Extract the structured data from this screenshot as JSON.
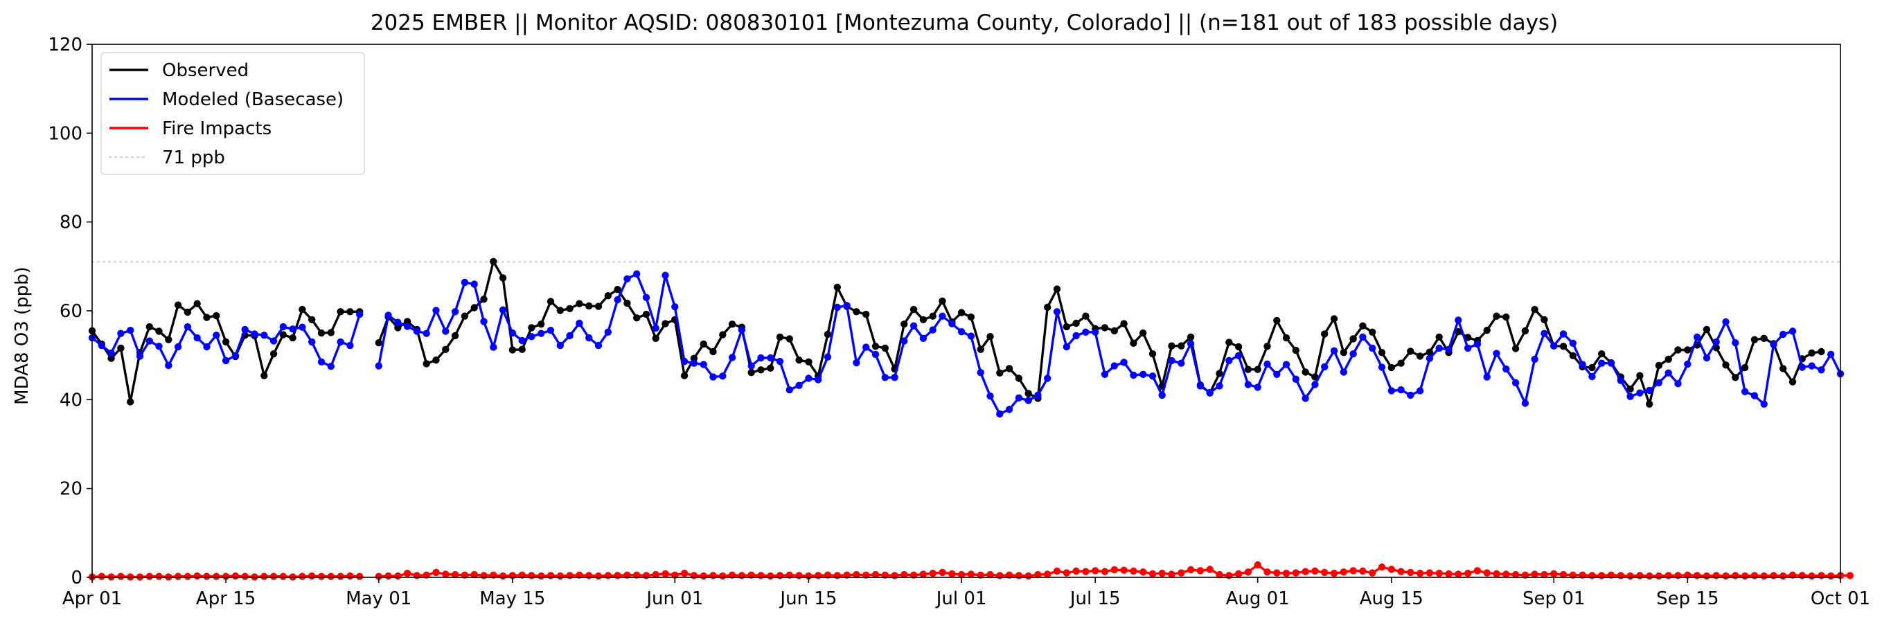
{
  "chart_data": {
    "type": "line",
    "title": "2025 EMBER || Monitor AQSID: 080830101 [Montezuma County, Colorado] || (n=181 out of 183 possible days)",
    "xlabel": "",
    "ylabel": "MDA8 O3 (ppb)",
    "xlim": [
      "2025-04-01",
      "2025-10-01"
    ],
    "ylim": [
      0,
      120
    ],
    "yticks": [
      0,
      20,
      40,
      60,
      80,
      100,
      120
    ],
    "xticks": [
      {
        "date": "2025-04-01",
        "label": "Apr 01"
      },
      {
        "date": "2025-04-15",
        "label": "Apr 15"
      },
      {
        "date": "2025-05-01",
        "label": "May 01"
      },
      {
        "date": "2025-05-15",
        "label": "May 15"
      },
      {
        "date": "2025-06-01",
        "label": "Jun 01"
      },
      {
        "date": "2025-06-15",
        "label": "Jun 15"
      },
      {
        "date": "2025-07-01",
        "label": "Jul 01"
      },
      {
        "date": "2025-07-15",
        "label": "Jul 15"
      },
      {
        "date": "2025-08-01",
        "label": "Aug 01"
      },
      {
        "date": "2025-08-15",
        "label": "Aug 15"
      },
      {
        "date": "2025-09-01",
        "label": "Sep 01"
      },
      {
        "date": "2025-09-15",
        "label": "Sep 15"
      },
      {
        "date": "2025-10-01",
        "label": "Oct 01"
      }
    ],
    "grid": false,
    "legend_position": "upper-left",
    "start_date": "2025-04-01",
    "series": [
      {
        "name": "Observed",
        "color": "#000000",
        "values": [
          55.5,
          52.5,
          49.3,
          51.6,
          39.5,
          50.6,
          56.4,
          55.4,
          53.5,
          61.3,
          59.7,
          61.6,
          58.5,
          58.9,
          53,
          49.7,
          54.5,
          54.4,
          45.4,
          50.3,
          54.6,
          53.9,
          60.3,
          58,
          55,
          55.1,
          59.8,
          59.8,
          59.8,
          null,
          52.8,
          58.6,
          56.2,
          57.6,
          55.8,
          48.1,
          48.9,
          51.3,
          54.4,
          58.8,
          60.7,
          62.6,
          71.1,
          67.4,
          51.2,
          51.3,
          56.2,
          57,
          62.1,
          60.1,
          60.5,
          61.6,
          61.1,
          61,
          63.4,
          64.8,
          61.7,
          58.4,
          59.2,
          53.8,
          57.1,
          58,
          45.4,
          49.3,
          52.5,
          50.8,
          54.6,
          57,
          56.3,
          46.1,
          46.7,
          47.1,
          54.1,
          53.7,
          48.9,
          48.5,
          45.3,
          54.7,
          65.3,
          61,
          59.8,
          59.2,
          52,
          51.6,
          46.9,
          57,
          60.3,
          58,
          58.8,
          62.2,
          57.5,
          59.6,
          58.6,
          51.3,
          54.2,
          46,
          47,
          44.8,
          41.4,
          40.3,
          60.8,
          64.9,
          56.4,
          57.2,
          58.8,
          56,
          56.2,
          55.5,
          57.1,
          52.7,
          55,
          50.3,
          43,
          52.1,
          52.1,
          54.1,
          43.3,
          41.5,
          45.9,
          52.9,
          51.9,
          46.8,
          46.8,
          52,
          57.8,
          53.9,
          51.1,
          46.2,
          45.1,
          54.8,
          58.2,
          50.6,
          53.7,
          56.6,
          55.2,
          50.6,
          47.2,
          48.2,
          50.9,
          49.8,
          50.7,
          54.1,
          50.6,
          55.3,
          54,
          53.3,
          55.6,
          58.8,
          58.6,
          51.5,
          55.5,
          60.3,
          58,
          52.1,
          52,
          49.9,
          47.4,
          47.2,
          50.3,
          48.3,
          45.1,
          42.4,
          45.4,
          39,
          47.7,
          49.1,
          51.2,
          51.2,
          52.3,
          55.8,
          51.7,
          47.8,
          45,
          47.2,
          53.5,
          53.8,
          52.6,
          47,
          44,
          49.2,
          50.5,
          50.8
        ]
      },
      {
        "name": "Modeled (Basecase)",
        "color": "#0000ff",
        "values": [
          53.9,
          52.2,
          50.5,
          54.9,
          55.6,
          49.8,
          53.2,
          52,
          47.7,
          51.9,
          56.4,
          53.9,
          51.9,
          54.5,
          48.8,
          49.9,
          55.8,
          54.8,
          54.5,
          53.2,
          56.4,
          55.9,
          56.3,
          53,
          48.5,
          47.5,
          53,
          52.2,
          59.2,
          null,
          47.6,
          59,
          57.4,
          56.5,
          55.4,
          54.9,
          60.1,
          55.4,
          59.8,
          66.4,
          66,
          57.6,
          51.8,
          60.2,
          55,
          53.3,
          54.2,
          54.9,
          55.6,
          52.2,
          54.4,
          57.2,
          53.9,
          52.2,
          55.2,
          62.5,
          67.2,
          68.3,
          63,
          56.1,
          68,
          60.9,
          48.6,
          48.2,
          47.9,
          45.1,
          45.3,
          49.5,
          55.7,
          47.6,
          49.4,
          49.4,
          48.6,
          42.2,
          43.2,
          44.8,
          44.5,
          49.6,
          60.8,
          61.2,
          48.3,
          51.8,
          50.2,
          45,
          45,
          53.2,
          56.6,
          53.8,
          55.7,
          58.8,
          57.1,
          55.3,
          54.3,
          46.1,
          40.8,
          36.8,
          37.8,
          40.4,
          39.8,
          41,
          44.8,
          59.8,
          51.9,
          54.4,
          55.2,
          55.2,
          45.7,
          47.6,
          48.4,
          45.5,
          45.7,
          45.3,
          41,
          48.8,
          48.2,
          52.6,
          43.1,
          41.6,
          43.1,
          48.8,
          49.9,
          43.4,
          42.8,
          48,
          45.7,
          47.9,
          44.6,
          40.3,
          43.4,
          47.4,
          51,
          46.2,
          50.3,
          54.1,
          51.6,
          47.3,
          42,
          42.2,
          41,
          42,
          49.3,
          51.6,
          51.3,
          57.9,
          51.6,
          52.5,
          45.1,
          50.4,
          46.9,
          43.8,
          39.2,
          49.1,
          54.9,
          52.1,
          54.8,
          52.7,
          47.9,
          45.2,
          48.2,
          48.2,
          44.3,
          40.7,
          41.5,
          42.1,
          43.8,
          46,
          43.6,
          48,
          54.1,
          49.4,
          53,
          57.5,
          52.8,
          41.8,
          40.9,
          39,
          52.4,
          54.7,
          55.4,
          47.3,
          47.6,
          46.7,
          50.2,
          45.8
        ]
      },
      {
        "name": "Fire Impacts",
        "color": "#ff0000",
        "values": [
          0.1,
          0.2,
          0.1,
          0.2,
          0.1,
          0.1,
          0.2,
          0.2,
          0.1,
          0.2,
          0.2,
          0.3,
          0.2,
          0.2,
          0.2,
          0.3,
          0.2,
          0.1,
          0.2,
          0.2,
          0.2,
          0.1,
          0.2,
          0.3,
          0.2,
          0.2,
          0.2,
          0.3,
          0.2,
          null,
          0.2,
          0.3,
          0.3,
          0.9,
          0.4,
          0.5,
          1.1,
          0.7,
          0.6,
          0.5,
          0.6,
          0.4,
          0.5,
          0.3,
          0.4,
          0.5,
          0.4,
          0.3,
          0.4,
          0.3,
          0.4,
          0.5,
          0.4,
          0.3,
          0.4,
          0.4,
          0.5,
          0.5,
          0.4,
          0.6,
          0.8,
          0.5,
          0.9,
          0.4,
          0.3,
          0.4,
          0.3,
          0.5,
          0.4,
          0.5,
          0.4,
          0.3,
          0.4,
          0.5,
          0.4,
          0.3,
          0.4,
          0.5,
          0.4,
          0.5,
          0.6,
          0.5,
          0.6,
          0.5,
          0.4,
          0.6,
          0.5,
          0.7,
          0.9,
          1.1,
          0.8,
          0.6,
          0.7,
          0.5,
          0.6,
          0.4,
          0.5,
          0.4,
          0.3,
          0.6,
          0.7,
          1.4,
          1,
          1.4,
          1.3,
          1.5,
          1.3,
          1.7,
          1.6,
          1.4,
          1.2,
          0.8,
          0.9,
          0.7,
          1,
          1.7,
          1.5,
          1.8,
          0.6,
          0.4,
          0.8,
          1.2,
          2.8,
          1.2,
          1,
          0.9,
          1,
          1.3,
          1.4,
          1.1,
          0.9,
          1.2,
          1.5,
          1.4,
          1,
          2.3,
          1.8,
          1.3,
          1.1,
          0.9,
          1,
          0.9,
          0.8,
          0.7,
          0.9,
          1.5,
          1,
          0.8,
          0.7,
          0.6,
          0.5,
          0.7,
          0.6,
          0.8,
          0.6,
          0.5,
          0.5,
          0.4,
          0.4,
          0.5,
          0.4,
          0.3,
          0.4,
          0.3,
          0.3,
          0.4,
          0.4,
          0.5,
          0.4,
          0.3,
          0.4,
          0.3,
          0.4,
          0.3,
          0.4,
          0.3,
          0.4,
          0.3,
          0.5,
          0.4,
          0.3,
          0.4,
          0.3,
          0.4,
          0.4
        ]
      },
      {
        "name": "71 ppb",
        "color": "#d3d3d3",
        "style": "dotted",
        "y": 71
      }
    ]
  }
}
